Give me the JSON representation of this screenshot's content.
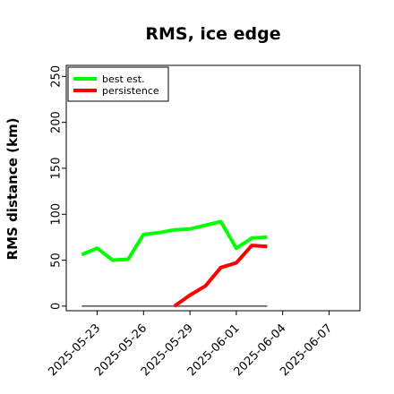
{
  "chart_data": {
    "type": "line",
    "title": "RMS, ice edge",
    "xlabel": "",
    "ylabel": "RMS distance (km)",
    "ylim": [
      -5,
      262
    ],
    "xlim": [
      "2025-05-21",
      "2025-06-09"
    ],
    "yticks": [
      0,
      50,
      100,
      150,
      200,
      250
    ],
    "xticks": [
      "2025-05-23",
      "2025-05-26",
      "2025-05-29",
      "2025-06-01",
      "2025-06-04",
      "2025-06-07"
    ],
    "grid": false,
    "legend_position": "upper-left",
    "series": [
      {
        "name": "best est.",
        "color": "#00ff00",
        "x": [
          "2025-05-22",
          "2025-05-23",
          "2025-05-24",
          "2025-05-25",
          "2025-05-26",
          "2025-05-27",
          "2025-05-28",
          "2025-05-29",
          "2025-05-30",
          "2025-05-31",
          "2025-06-01",
          "2025-06-02",
          "2025-06-03"
        ],
        "y": [
          56,
          63,
          50,
          51,
          78,
          80,
          83,
          84,
          88,
          92,
          63,
          74,
          75
        ]
      },
      {
        "name": "persistence",
        "color": "#ff0000",
        "x": [
          "2025-05-28",
          "2025-05-29",
          "2025-05-30",
          "2025-05-31",
          "2025-06-01",
          "2025-06-02",
          "2025-06-03"
        ],
        "y": [
          0,
          12,
          22,
          42,
          47,
          66,
          65
        ]
      }
    ],
    "reference_line": {
      "color": "#555555",
      "x": [
        "2025-05-22",
        "2025-06-03"
      ],
      "y": [
        0,
        0
      ]
    }
  }
}
